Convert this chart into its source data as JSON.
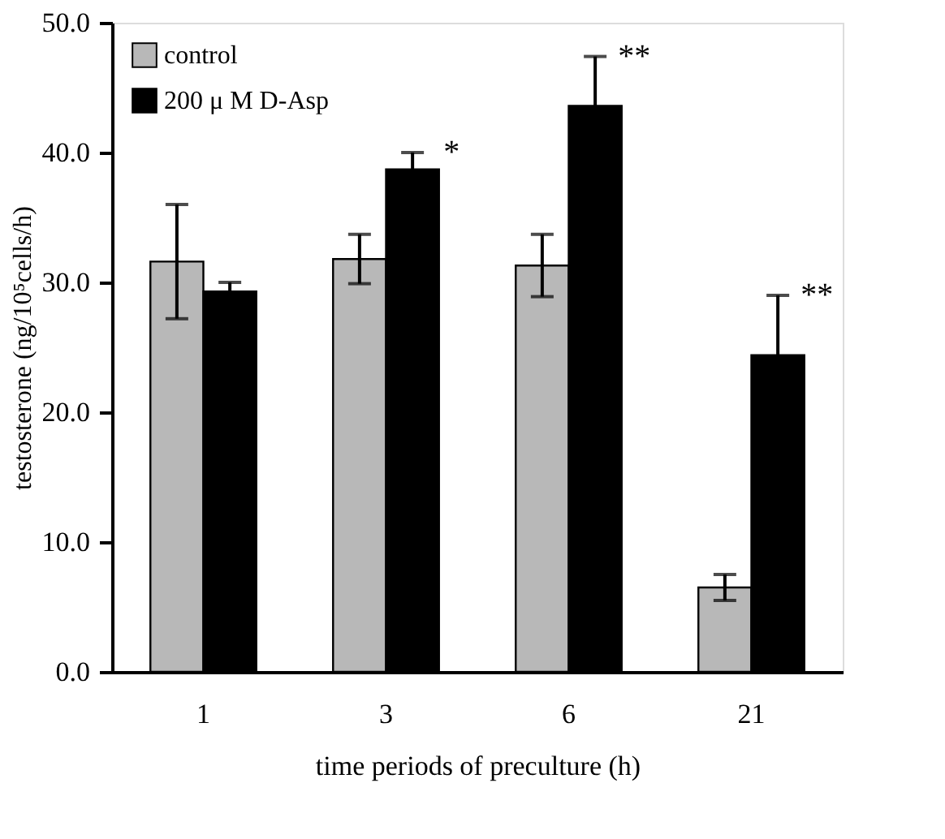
{
  "chart_data": {
    "type": "bar",
    "xlabel": "time periods of preculture (h)",
    "ylabel": "testosterone (ng/10⁵cells/h)",
    "categories": [
      "1",
      "3",
      "6",
      "21"
    ],
    "series": [
      {
        "name": "control",
        "color": "#b8b8b8",
        "values": [
          31.6,
          31.8,
          31.3,
          6.5
        ],
        "errors": [
          4.4,
          1.9,
          2.4,
          1.0
        ]
      },
      {
        "name": "200 μ M D-Asp",
        "color": "#000000",
        "values": [
          29.3,
          38.7,
          43.6,
          24.4
        ],
        "errors": [
          0.7,
          1.3,
          3.8,
          4.6
        ]
      }
    ],
    "ylim": [
      0,
      50
    ],
    "yticks": [
      {
        "value": 0,
        "label": "0.0"
      },
      {
        "value": 10,
        "label": "10.0"
      },
      {
        "value": 20,
        "label": "20.0"
      },
      {
        "value": 30,
        "label": "30.0"
      },
      {
        "value": 40,
        "label": "40.0"
      },
      {
        "value": 50,
        "label": "50.0"
      }
    ],
    "annotations": [
      {
        "text": "*",
        "x": "3",
        "y": 38.7
      },
      {
        "text": "**",
        "x": "6",
        "y": 43.6
      },
      {
        "text": "**",
        "x": "21",
        "y": 24.4
      }
    ],
    "legend": "top left",
    "grid": false
  }
}
